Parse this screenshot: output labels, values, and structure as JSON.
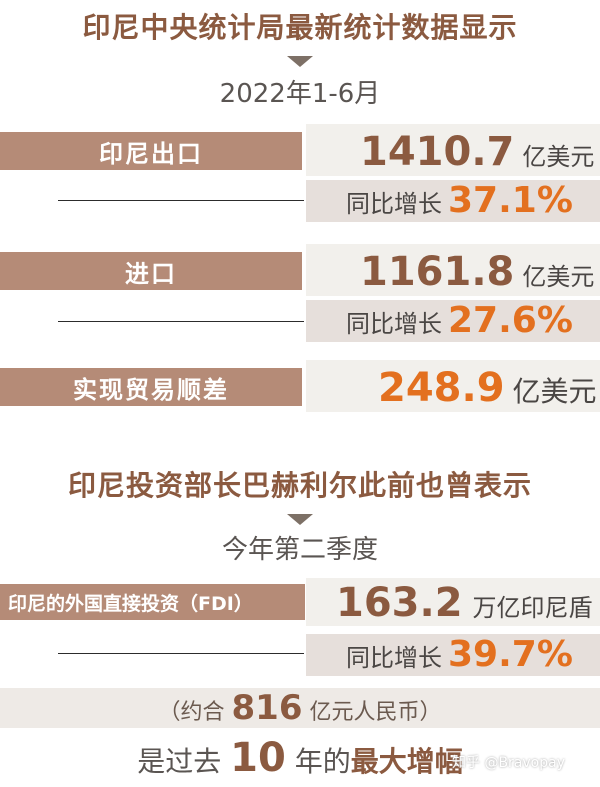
{
  "title1": "印尼中央统计局最新统计数据显示",
  "period1": "2022年1-6月",
  "export": {
    "label": "印尼出口",
    "value": "1410.7",
    "unit": "亿美元",
    "growth_label": "同比增长",
    "growth": "37.1%"
  },
  "import": {
    "label": "进口",
    "value": "1161.8",
    "unit": "亿美元",
    "growth_label": "同比增长",
    "growth": "27.6%"
  },
  "surplus": {
    "label": "实现贸易顺差",
    "value": "248.9",
    "unit": "亿美元"
  },
  "title2": "印尼投资部长巴赫利尔此前也曾表示",
  "period2": "今年第二季度",
  "fdi": {
    "label": "印尼的外国直接投资（FDI）",
    "value": "163.2",
    "unit": "万亿印尼盾",
    "growth_label": "同比增长",
    "growth": "39.7%"
  },
  "rmb": {
    "prefix": "（约合",
    "value": "816",
    "suffix": "亿元人民币）"
  },
  "last": {
    "prefix": "是过去",
    "value": "10",
    "middle": "年的",
    "emphasis": "最大增幅"
  },
  "watermark": "知乎 @Bravopay"
}
